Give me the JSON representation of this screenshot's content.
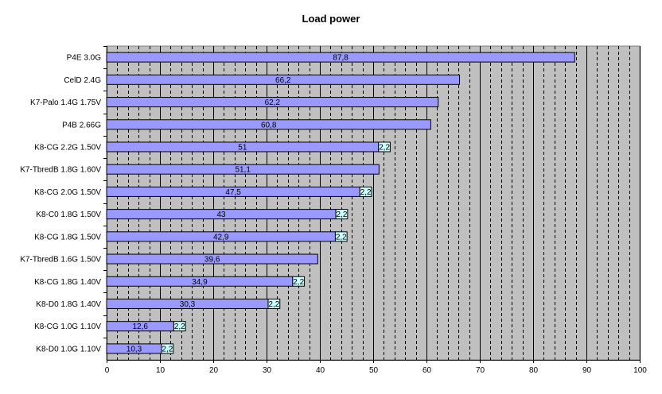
{
  "chart_data": {
    "type": "bar",
    "orientation": "horizontal",
    "stacked": true,
    "title": "Load power",
    "xlabel": "",
    "ylabel": "",
    "xlim": [
      0,
      100
    ],
    "x_ticks": [
      0,
      10,
      20,
      30,
      40,
      50,
      60,
      70,
      80,
      90,
      100
    ],
    "grid": true,
    "legend": "none",
    "categories": [
      "P4E 3.0G",
      "CelD 2.4G",
      "K7-Palo 1.4G 1.75V",
      "P4B 2.66G",
      "K8-CG 2.2G 1.50V",
      "K7-TbredB 1.8G 1.60V",
      "K8-CG 2.0G 1.50V",
      "K8-C0 1.8G 1.50V",
      "K8-CG 1.8G 1.50V",
      "K7-TbredB 1.6G 1.50V",
      "K8-CG 1.8G 1.40V",
      "K8-D0 1.8G 1.40V",
      "K8-CG 1.0G 1.10V",
      "K8-D0 1.0G 1.10V"
    ],
    "series": [
      {
        "color": "#9999ff",
        "values": [
          87.8,
          66.2,
          62.2,
          60.8,
          51,
          51.1,
          47.5,
          43,
          42.9,
          39.6,
          34.9,
          30.3,
          12.6,
          10.3
        ],
        "labels": [
          "87,8",
          "66,2",
          "62,2",
          "60,8",
          "51",
          "51,1",
          "47,5",
          "43",
          "42,9",
          "39,6",
          "34,9",
          "30,3",
          "12,6",
          "10,3"
        ]
      },
      {
        "color": "#ccffff",
        "values": [
          null,
          null,
          null,
          null,
          2.2,
          null,
          2.2,
          2.2,
          2.2,
          null,
          2.2,
          2.2,
          2.2,
          2.2
        ],
        "labels": [
          "",
          "",
          "",
          "",
          "2,2",
          "",
          "2,2",
          "2,2",
          "2,2",
          "",
          "2,2",
          "2,2",
          "2,2",
          "2,2"
        ]
      }
    ],
    "colors": {
      "plot_background": "#c0c0c0",
      "gridline": "#000000"
    }
  }
}
